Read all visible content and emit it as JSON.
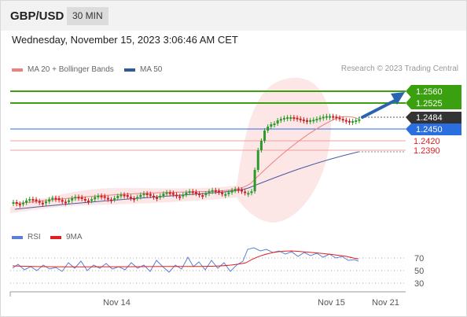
{
  "header": {
    "symbol": "GBP/USD",
    "timeframe": "30 MIN"
  },
  "datetime": "Wednesday, November 15, 2023 3:06:46 AM CET",
  "legend": {
    "ma20_label": "MA 20 + Bollinger Bands",
    "ma50_label": "MA 50",
    "ma20_color": "#f08080",
    "ma50_color": "#2f5b9a"
  },
  "research": "Research © 2023 Trading Central",
  "rsi_legend": {
    "rsi_label": "RSI",
    "ma9_label": "9MA",
    "rsi_color": "#5b7fd6",
    "ma9_color": "#e02020"
  },
  "price_labels": [
    {
      "value": "1.2560",
      "bg": "#3aa010",
      "fg": "#ffffff"
    },
    {
      "value": "1.2525",
      "bg": "#3aa010",
      "fg": "#ffffff"
    },
    {
      "value": "1.2484",
      "bg": "#333333",
      "fg": "#ffffff"
    },
    {
      "value": "1.2450",
      "bg": "#2a6ee0",
      "fg": "#ffffff"
    },
    {
      "value": "1.2420",
      "bg": "",
      "fg": "#e02020"
    },
    {
      "value": "1.2390",
      "bg": "",
      "fg": "#e02020"
    }
  ],
  "rsi_axis": [
    "70",
    "50",
    "30"
  ],
  "x_axis": [
    "Nov 14",
    "Nov 15",
    "Nov 21"
  ],
  "colors": {
    "resistance": "#3aa010",
    "pivot": "#2a6ee0",
    "support": "#e02020",
    "arrow": "#2a64b0",
    "up_candle": "#2a9a2a",
    "down_candle": "#d02020"
  }
}
